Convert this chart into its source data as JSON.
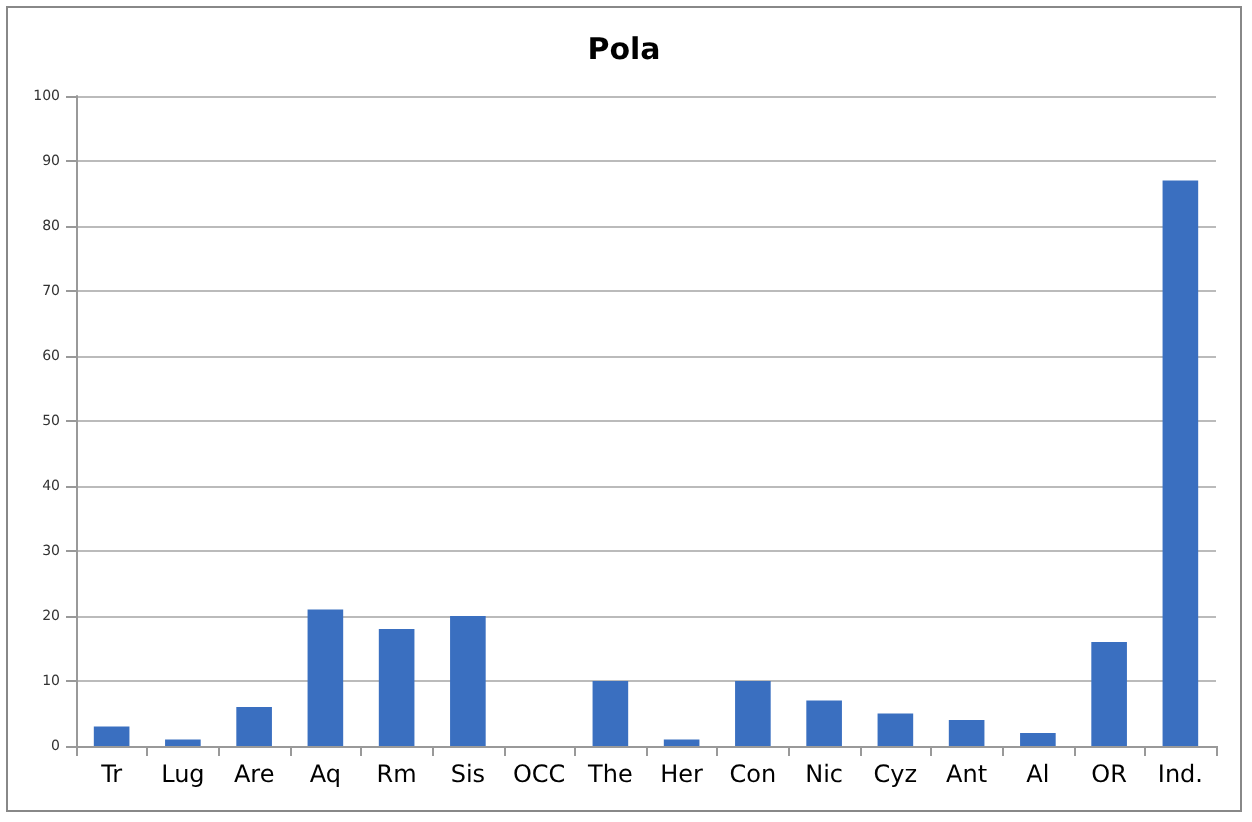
{
  "chart_data": {
    "type": "bar",
    "title": "Pola",
    "categories": [
      "Tr",
      "Lug",
      "Are",
      "Aq",
      "Rm",
      "Sis",
      "OCC",
      "The",
      "Her",
      "Con",
      "Nic",
      "Cyz",
      "Ant",
      "Al",
      "OR",
      "Ind."
    ],
    "values": [
      3,
      1,
      6,
      21,
      18,
      20,
      0,
      10,
      1,
      10,
      7,
      5,
      4,
      2,
      16,
      87
    ],
    "color": "#3a6fc0",
    "ylim": [
      0,
      100
    ],
    "yticks": [
      0,
      10,
      20,
      30,
      40,
      50,
      60,
      70,
      80,
      90,
      100
    ],
    "grid": "y"
  }
}
